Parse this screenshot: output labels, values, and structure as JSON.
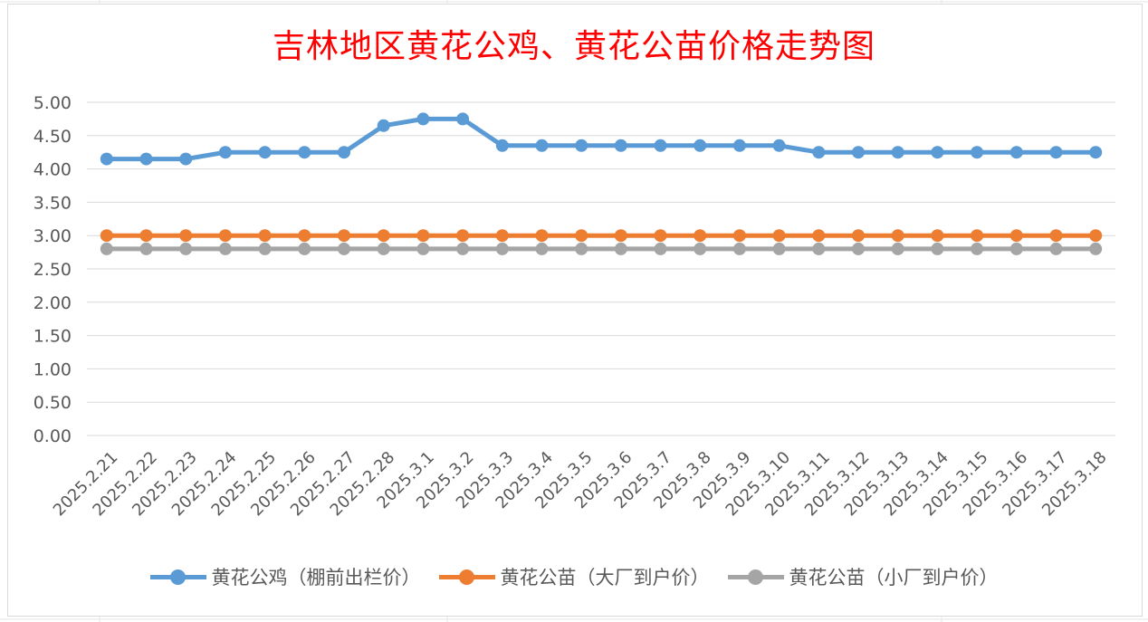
{
  "chart_data": {
    "type": "line",
    "title": "吉林地区黄花公鸡、黄花公苗价格走势图",
    "categories": [
      "2025.2.21",
      "2025.2.22",
      "2025.2.23",
      "2025.2.24",
      "2025.2.25",
      "2025.2.26",
      "2025.2.27",
      "2025.2.28",
      "2025.3.1",
      "2025.3.2",
      "2025.3.3",
      "2025.3.4",
      "2025.3.5",
      "2025.3.6",
      "2025.3.7",
      "2025.3.8",
      "2025.3.9",
      "2025.3.10",
      "2025.3.11",
      "2025.3.12",
      "2025.3.13",
      "2025.3.14",
      "2025.3.15",
      "2025.3.16",
      "2025.3.17",
      "2025.3.18"
    ],
    "yticks": [
      "0.00",
      "0.50",
      "1.00",
      "1.50",
      "2.00",
      "2.50",
      "3.00",
      "3.50",
      "4.00",
      "4.50",
      "5.00"
    ],
    "ylim": [
      0,
      5
    ],
    "grid": true,
    "legend_position": "bottom",
    "series": [
      {
        "name": "黄花公鸡（棚前出栏价）",
        "color": "#5b9bd5",
        "values": [
          4.15,
          4.15,
          4.15,
          4.25,
          4.25,
          4.25,
          4.25,
          4.65,
          4.75,
          4.75,
          4.35,
          4.35,
          4.35,
          4.35,
          4.35,
          4.35,
          4.35,
          4.35,
          4.25,
          4.25,
          4.25,
          4.25,
          4.25,
          4.25,
          4.25,
          4.25
        ]
      },
      {
        "name": "黄花公苗（大厂到户价）",
        "color": "#ed7d31",
        "values": [
          3.0,
          3.0,
          3.0,
          3.0,
          3.0,
          3.0,
          3.0,
          3.0,
          3.0,
          3.0,
          3.0,
          3.0,
          3.0,
          3.0,
          3.0,
          3.0,
          3.0,
          3.0,
          3.0,
          3.0,
          3.0,
          3.0,
          3.0,
          3.0,
          3.0,
          3.0
        ]
      },
      {
        "name": "黄花公苗（小厂到户价）",
        "color": "#a5a5a5",
        "values": [
          2.8,
          2.8,
          2.8,
          2.8,
          2.8,
          2.8,
          2.8,
          2.8,
          2.8,
          2.8,
          2.8,
          2.8,
          2.8,
          2.8,
          2.8,
          2.8,
          2.8,
          2.8,
          2.8,
          2.8,
          2.8,
          2.8,
          2.8,
          2.8,
          2.8,
          2.8
        ]
      }
    ]
  }
}
